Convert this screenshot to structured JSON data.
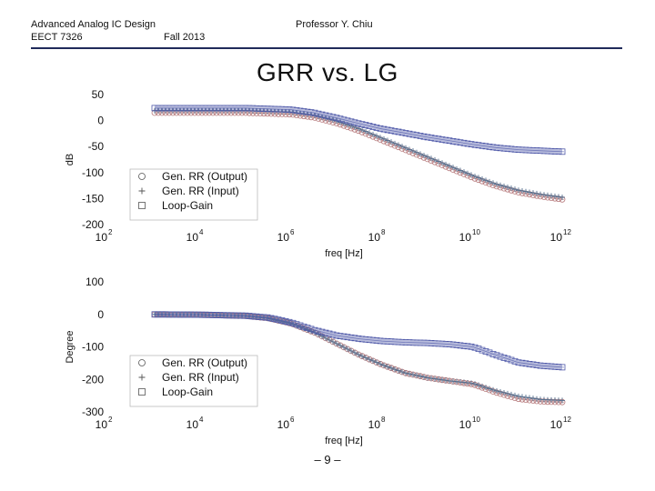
{
  "header": {
    "course": "Advanced Analog IC Design",
    "code": "EECT 7326",
    "term": "Fall 2013",
    "professor": "Professor Y. Chiu"
  },
  "slide": {
    "title": "GRR vs. LG",
    "page": "– 9 –"
  },
  "colors": {
    "output": "#b5787a",
    "input": "#556f8e",
    "loop": "#4e58a8",
    "rule": "#1f2a5a"
  },
  "chart_data": [
    {
      "type": "scatter",
      "xscale": "log",
      "xlabel": "freq [Hz]",
      "ylabel": "dB",
      "xlim": [
        100,
        1000000000000
      ],
      "ylim": [
        -200,
        50
      ],
      "xticks": [
        {
          "base": "10",
          "exp": "2"
        },
        {
          "base": "10",
          "exp": "4"
        },
        {
          "base": "10",
          "exp": "6"
        },
        {
          "base": "10",
          "exp": "8"
        },
        {
          "base": "10",
          "exp": "10"
        },
        {
          "base": "10",
          "exp": "12"
        }
      ],
      "yticks": [
        "50",
        "0",
        "-50",
        "-100",
        "-150",
        "-200"
      ],
      "legend_position": "bottom-left",
      "series": [
        {
          "name": "Gen. RR (Output)",
          "marker": "circle",
          "color": "#b5787a",
          "x_log10": [
            3,
            4,
            5,
            6,
            6.5,
            7,
            7.5,
            8,
            8.5,
            9,
            9.5,
            10,
            10.5,
            11,
            11.5,
            12
          ],
          "values": [
            15,
            15,
            15,
            12,
            6,
            -5,
            -20,
            -38,
            -56,
            -74,
            -92,
            -110,
            -126,
            -138,
            -146,
            -152
          ]
        },
        {
          "name": "Gen. RR (Input)",
          "marker": "plus",
          "color": "#556f8e",
          "x_log10": [
            3,
            4,
            5,
            6,
            6.5,
            7,
            7.5,
            8,
            8.5,
            9,
            9.5,
            10,
            10.5,
            11,
            11.5,
            12
          ],
          "values": [
            19,
            19,
            19,
            16,
            10,
            -1,
            -16,
            -34,
            -52,
            -70,
            -88,
            -106,
            -122,
            -134,
            -142,
            -148
          ]
        },
        {
          "name": "Loop-Gain",
          "marker": "square",
          "color": "#4e58a8",
          "x_log10": [
            3,
            4,
            5,
            6,
            6.5,
            7,
            7.5,
            8,
            8.5,
            9,
            9.5,
            10,
            10.5,
            11,
            11.5,
            12
          ],
          "values": [
            24,
            24,
            24,
            21,
            15,
            5,
            -6,
            -16,
            -24,
            -32,
            -39,
            -46,
            -52,
            -56,
            -58,
            -60
          ]
        }
      ]
    },
    {
      "type": "scatter",
      "xscale": "log",
      "xlabel": "freq [Hz]",
      "ylabel": "Degree",
      "xlim": [
        100,
        1000000000000
      ],
      "ylim": [
        -300,
        100
      ],
      "xticks": [
        {
          "base": "10",
          "exp": "2"
        },
        {
          "base": "10",
          "exp": "4"
        },
        {
          "base": "10",
          "exp": "6"
        },
        {
          "base": "10",
          "exp": "8"
        },
        {
          "base": "10",
          "exp": "10"
        },
        {
          "base": "10",
          "exp": "12"
        }
      ],
      "yticks": [
        "100",
        "0",
        "-100",
        "-200",
        "-300"
      ],
      "legend_position": "bottom-left",
      "series": [
        {
          "name": "Gen. RR (Output)",
          "marker": "circle",
          "color": "#b5787a",
          "x_log10": [
            3,
            4,
            5,
            5.5,
            6,
            6.5,
            7,
            7.5,
            8,
            8.5,
            9,
            9.5,
            10,
            10.5,
            11,
            11.5,
            12
          ],
          "values": [
            0,
            -1,
            -5,
            -12,
            -28,
            -55,
            -90,
            -125,
            -155,
            -180,
            -195,
            -205,
            -215,
            -240,
            -260,
            -268,
            -270
          ]
        },
        {
          "name": "Gen. RR (Input)",
          "marker": "plus",
          "color": "#556f8e",
          "x_log10": [
            3,
            4,
            5,
            5.5,
            6,
            6.5,
            7,
            7.5,
            8,
            8.5,
            9,
            9.5,
            10,
            10.5,
            11,
            11.5,
            12
          ],
          "values": [
            0,
            -1,
            -5,
            -12,
            -28,
            -55,
            -90,
            -125,
            -155,
            -180,
            -195,
            -205,
            -212,
            -235,
            -252,
            -262,
            -265
          ]
        },
        {
          "name": "Loop-Gain",
          "marker": "square",
          "color": "#4e58a8",
          "x_log10": [
            3,
            4,
            5,
            5.5,
            6,
            6.5,
            7,
            7.5,
            8,
            8.5,
            9,
            9.5,
            10,
            10.5,
            11,
            11.5,
            12
          ],
          "values": [
            0,
            -1,
            -4,
            -10,
            -25,
            -48,
            -65,
            -75,
            -82,
            -86,
            -88,
            -92,
            -100,
            -125,
            -148,
            -158,
            -163
          ]
        }
      ]
    }
  ]
}
